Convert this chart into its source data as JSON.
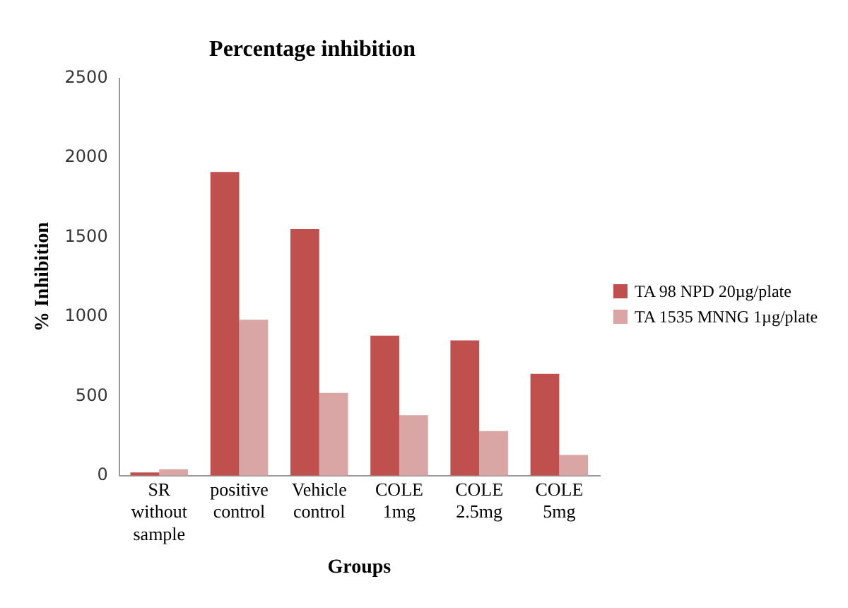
{
  "chart_data": {
    "type": "bar",
    "title": "Percentage inhibition",
    "xlabel": "Groups",
    "ylabel": "% Inhibition",
    "categories": [
      "SR without sample",
      "positive control",
      "Vehicle control",
      "COLE 1mg",
      "COLE 2.5mg",
      "COLE 5mg"
    ],
    "series": [
      {
        "name": "TA 98 NPD 20µg/plate",
        "color": "#c0504d",
        "values": [
          20,
          1910,
          1550,
          880,
          850,
          640
        ]
      },
      {
        "name": "TA 1535 MNNG 1µg/plate",
        "color": "#d9a5a5",
        "values": [
          40,
          980,
          520,
          380,
          280,
          130
        ]
      }
    ],
    "ylim": [
      0,
      2500
    ],
    "yticks": [
      0,
      500,
      1000,
      1500,
      2000,
      2500
    ],
    "grid": false,
    "legend": "right"
  }
}
